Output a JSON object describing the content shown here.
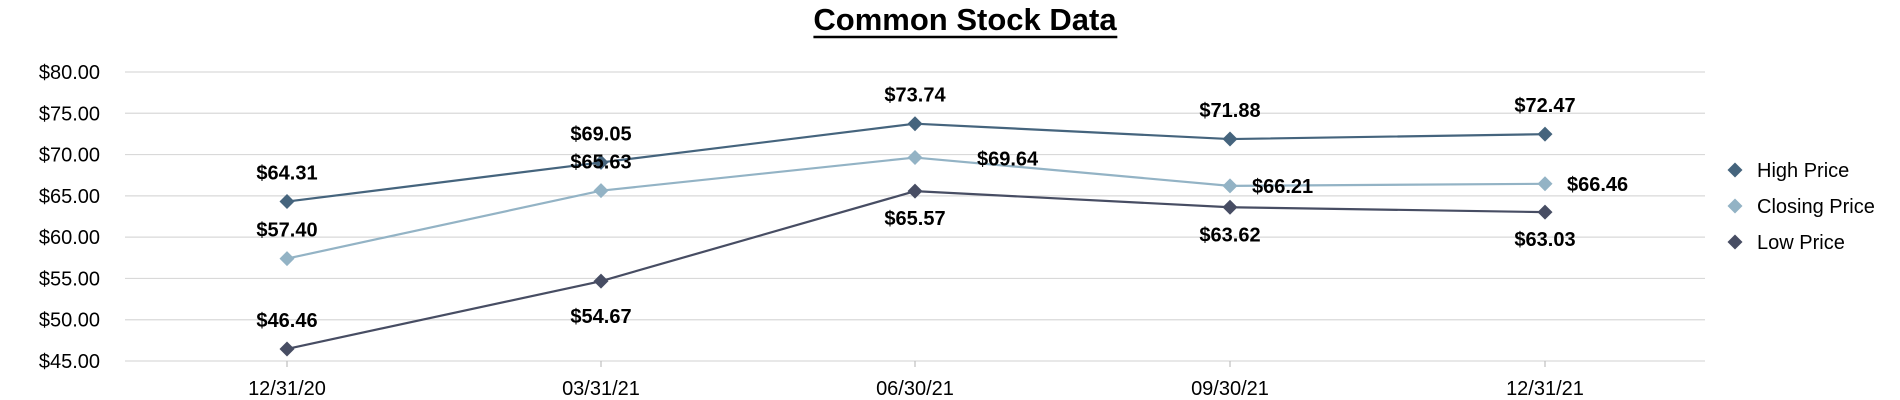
{
  "chart_data": {
    "type": "line",
    "title": "Common Stock Data",
    "xlabel": "",
    "ylabel": "",
    "categories": [
      "12/31/20",
      "03/31/21",
      "06/30/21",
      "09/30/21",
      "12/31/21"
    ],
    "ylim": [
      45,
      80
    ],
    "yticks": [
      45,
      50,
      55,
      60,
      65,
      70,
      75,
      80
    ],
    "ytick_labels": [
      "$45.00",
      "$50.00",
      "$55.00",
      "$60.00",
      "$65.00",
      "$70.00",
      "$75.00",
      "$80.00"
    ],
    "grid": true,
    "legend_position": "right",
    "series": [
      {
        "name": "High Price",
        "color": "#45647d",
        "values": [
          64.31,
          69.05,
          73.74,
          71.88,
          72.47
        ],
        "labels": [
          "$64.31",
          "$69.05",
          "$73.74",
          "$71.88",
          "$72.47"
        ]
      },
      {
        "name": "Closing Price",
        "color": "#93b3c5",
        "values": [
          57.4,
          65.63,
          69.64,
          66.21,
          66.46
        ],
        "labels": [
          "$57.40",
          "$65.63",
          "$69.64",
          "$66.21",
          "$66.46"
        ]
      },
      {
        "name": "Low Price",
        "color": "#474d63",
        "values": [
          46.46,
          54.67,
          65.57,
          63.62,
          63.03
        ],
        "labels": [
          "$46.46",
          "$54.67",
          "$65.57",
          "$63.62",
          "$63.03"
        ]
      }
    ]
  }
}
